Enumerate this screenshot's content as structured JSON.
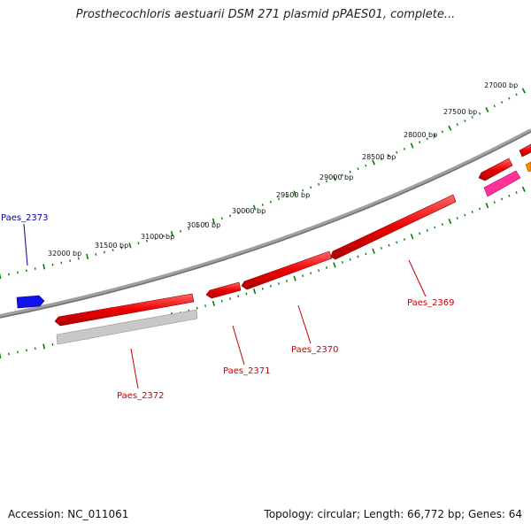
{
  "title": "Prosthecochloris aestuarii DSM 271 plasmid pPAES01, complete...",
  "accession": "Accession: NC_011061",
  "summary": "Topology: circular; Length: 66,772 bp; Genes: 64",
  "scale_labels": [
    "27000 bp",
    "27500 bp",
    "28000 bp",
    "28500 bp",
    "29000 bp",
    "29500 bp",
    "30000 bp",
    "30500 bp",
    "31000 bp",
    "31500 bp",
    "32000 bp"
  ],
  "genes": [
    {
      "name": "Paes_2369",
      "color": "#cc0000",
      "arrow": "#ee1111"
    },
    {
      "name": "Paes_2370",
      "color": "#cc0000",
      "arrow": "#ee1111"
    },
    {
      "name": "Paes_2371",
      "color": "#cc0000",
      "arrow": "#ee1111"
    },
    {
      "name": "Paes_2372",
      "color": "#cc0000",
      "arrow": "#ee1111"
    },
    {
      "name": "Paes_2373",
      "color": "#000099",
      "arrow": "#1111ee"
    }
  ],
  "colors": {
    "backbone": "#808080",
    "ticks": "#008000",
    "pseudogene": "#c0c0c0",
    "pink": "#ff3399",
    "orange": "#ff8800"
  }
}
